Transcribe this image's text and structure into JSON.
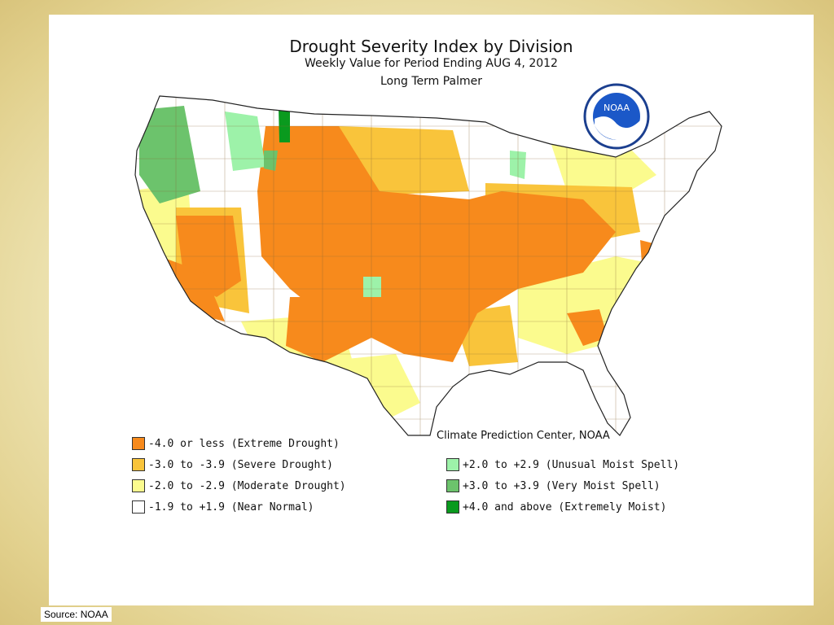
{
  "title": "Drought Severity Index by Division",
  "subtitle": "Weekly Value for Period Ending AUG  4, 2012",
  "subtitle2": "Long Term Palmer",
  "credit": "Climate Prediction Center, NOAA",
  "logo_text": "NOAA",
  "source": "Source: NOAA",
  "colors": {
    "extreme": "#f78a1c",
    "severe": "#f9c43b",
    "moderate": "#fbfb8e",
    "normal": "#ffffff",
    "unusual_moist": "#9df2a9",
    "very_moist": "#6cc36c",
    "extremely_moist": "#0a9a1e"
  },
  "legend": [
    {
      "key": "extreme",
      "label": "-4.0 or less (Extreme Drought)"
    },
    {
      "key": "severe",
      "label": "-3.0 to -3.9 (Severe Drought)"
    },
    {
      "key": "moderate",
      "label": "-2.0 to -2.9 (Moderate Drought)"
    },
    {
      "key": "normal",
      "label": "-1.9 to +1.9 (Near Normal)"
    },
    {
      "key": "unusual_moist",
      "label": "+2.0 to +2.9 (Unusual Moist Spell)"
    },
    {
      "key": "very_moist",
      "label": "+3.0 to +3.9 (Very Moist Spell)"
    },
    {
      "key": "extremely_moist",
      "label": "+4.0 and above (Extremely Moist)"
    }
  ]
}
